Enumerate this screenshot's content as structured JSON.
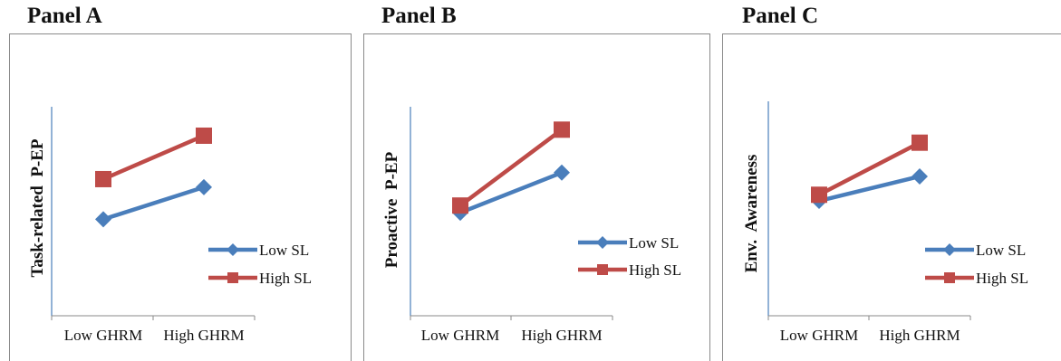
{
  "chart_data": [
    {
      "type": "line",
      "title": "Panel A",
      "ylabel": "Task-related  P-EP",
      "xlabel": "",
      "categories": [
        "Low GHRM",
        "High GHRM"
      ],
      "series": [
        {
          "name": "Low SL",
          "values": [
            2.0,
            3.0
          ],
          "color": "#4a7ebb",
          "marker": "diamond"
        },
        {
          "name": "High SL",
          "values": [
            3.25,
            4.6
          ],
          "color": "#be4b48",
          "marker": "square"
        }
      ],
      "ylim": [
        -1,
        5.5
      ],
      "legend": "bottom-right"
    },
    {
      "type": "line",
      "title": "Panel B",
      "ylabel": "Proactive  P-EP",
      "xlabel": "",
      "categories": [
        "Low GHRM",
        "High GHRM"
      ],
      "series": [
        {
          "name": "Low SL",
          "values": [
            2.6,
            4.0
          ],
          "color": "#4a7ebb",
          "marker": "diamond"
        },
        {
          "name": "High SL",
          "values": [
            2.85,
            5.5
          ],
          "color": "#be4b48",
          "marker": "square"
        }
      ],
      "ylim": [
        -1,
        6.3
      ],
      "legend": "bottom-right"
    },
    {
      "type": "line",
      "title": "Panel C",
      "ylabel": "Env.  Awareness",
      "xlabel": "",
      "categories": [
        "Low GHRM",
        "High GHRM"
      ],
      "series": [
        {
          "name": "Low SL",
          "values": [
            2.75,
            3.55
          ],
          "color": "#4a7ebb",
          "marker": "diamond"
        },
        {
          "name": "High SL",
          "values": [
            2.95,
            4.65
          ],
          "color": "#be4b48",
          "marker": "square"
        }
      ],
      "ylim": [
        -1,
        6.0
      ],
      "legend": "bottom-right"
    }
  ]
}
